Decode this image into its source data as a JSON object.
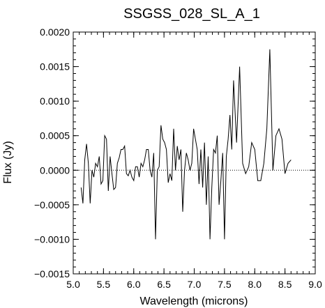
{
  "chart_data": {
    "type": "line",
    "title": "SSGSS_028_SL_A_1",
    "xlabel": "Wavelength (microns)",
    "ylabel": "Flux (Jy)",
    "xlim": [
      5.0,
      9.0
    ],
    "ylim": [
      -0.0015,
      0.002
    ],
    "x_ticks": [
      5.0,
      5.5,
      6.0,
      6.5,
      7.0,
      7.5,
      8.0,
      8.5,
      9.0
    ],
    "x_tick_labels": [
      "5.0",
      "5.5",
      "6.0",
      "6.5",
      "7.0",
      "7.5",
      "8.0",
      "8.5",
      "9.0"
    ],
    "y_ticks": [
      -0.0015,
      -0.001,
      -0.0005,
      0.0,
      0.0005,
      0.001,
      0.0015,
      0.002
    ],
    "y_tick_labels": [
      "−0.0015",
      "−0.0010",
      "−0.0005",
      "0.0000",
      "0.0005",
      "0.0010",
      "0.0015",
      "0.0020"
    ],
    "reference_line": {
      "y": 0.0,
      "style": "dotted"
    },
    "grid": false,
    "series": [
      {
        "x": [
          5.13,
          5.16,
          5.19,
          5.22,
          5.25,
          5.28,
          5.31,
          5.34,
          5.37,
          5.4,
          5.43,
          5.46,
          5.49,
          5.52,
          5.55,
          5.58,
          5.61,
          5.64,
          5.67,
          5.7,
          5.73,
          5.76,
          5.79,
          5.82,
          5.85,
          5.88,
          5.91,
          5.94,
          5.97,
          6.0,
          6.03,
          6.06,
          6.09,
          6.12,
          6.15,
          6.18,
          6.21,
          6.24,
          6.27,
          6.3,
          6.33,
          6.36,
          6.39,
          6.42,
          6.45,
          6.48,
          6.51,
          6.54,
          6.57,
          6.6,
          6.63,
          6.66,
          6.69,
          6.72,
          6.75,
          6.78,
          6.81,
          6.84,
          6.87,
          6.9,
          6.93,
          6.96,
          6.99,
          7.02,
          7.05,
          7.08,
          7.11,
          7.14,
          7.17,
          7.2,
          7.23,
          7.26,
          7.29,
          7.32,
          7.35,
          7.38,
          7.41,
          7.44,
          7.47,
          7.5,
          7.53,
          7.56,
          7.59,
          7.62,
          7.65,
          7.7,
          7.75,
          7.8,
          7.85,
          7.9,
          7.95,
          8.0,
          8.05,
          8.1,
          8.15,
          8.2,
          8.25,
          8.3,
          8.35,
          8.4,
          8.45,
          8.5,
          8.55,
          8.6
        ],
        "y": [
          -0.00025,
          -0.00048,
          0.00015,
          0.00038,
          0.0001,
          -0.00048,
          0.0,
          -0.0001,
          0.0001,
          5e-05,
          0.0002,
          -0.0002,
          -0.00015,
          0.0005,
          0.00045,
          -0.0003,
          0.0002,
          -5e-05,
          -0.00028,
          -0.00025,
          0.0001,
          0.00018,
          0.0003,
          0.0003,
          0.00035,
          -5e-05,
          -8e-05,
          0.0,
          -0.0001,
          -0.00015,
          5e-05,
          5e-05,
          -0.0001,
          0.0001,
          5e-05,
          0.00015,
          0.0003,
          0.0003,
          0.0,
          -0.0001,
          0.00025,
          -0.001,
          0.0,
          5e-05,
          0.00065,
          0.00045,
          0.0004,
          0.0003,
          -0.00018,
          -5e-05,
          -0.00015,
          0.0006,
          0.0,
          0.00035,
          0.00015,
          0.0003,
          -0.0006,
          0.0,
          0.00025,
          0.00015,
          0.0,
          0.0001,
          0.0006,
          0.00045,
          0.0003,
          -0.0002,
          0.0003,
          -0.00025,
          0.0004,
          -0.0005,
          0.0002,
          -0.001,
          -0.00025,
          0.0003,
          0.00025,
          0.0005,
          -0.0005,
          -0.00015,
          0.00025,
          -0.001,
          0.0002,
          0.00045,
          0.0008,
          0.0003,
          0.0013,
          0.0004,
          0.0015,
          0.0001,
          -5e-05,
          5e-05,
          0.0004,
          0.0003,
          -0.00015,
          -0.00015,
          0.0001,
          0.0006,
          0.00175,
          0.0,
          0.0005,
          0.0006,
          0.00045,
          -5e-05,
          0.0001,
          0.00015
        ]
      }
    ]
  }
}
